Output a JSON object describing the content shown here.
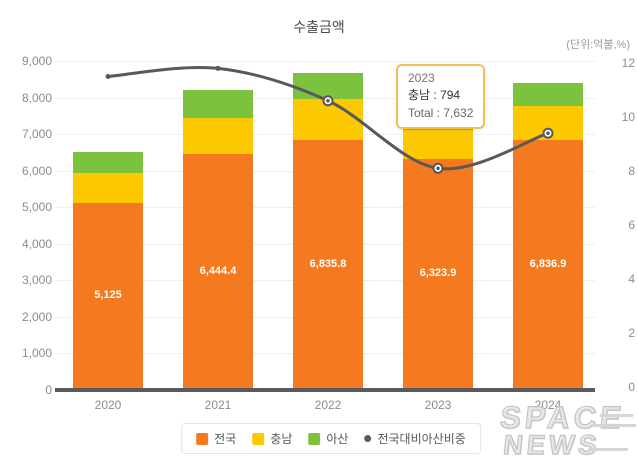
{
  "chart_data": {
    "type": "bar",
    "subtype": "stacked-bars-with-line",
    "title": "수출금액",
    "unit_note": "(단위:억불,%)",
    "categories": [
      "2020",
      "2021",
      "2022",
      "2023",
      "2024"
    ],
    "series": [
      {
        "name": "전국",
        "key": "nationwide",
        "color": "#f4791f",
        "values": [
          5125,
          6444.4,
          6835.8,
          6323.9,
          6836.9
        ],
        "labels": [
          "5,125",
          "6,444.4",
          "6,835.8",
          "6,323.9",
          "6,836.9"
        ]
      },
      {
        "name": "충남",
        "key": "chungnam",
        "color": "#fcc800",
        "values": [
          805,
          990,
          1115,
          794,
          920
        ]
      },
      {
        "name": "아산",
        "key": "asan",
        "color": "#7cc23e",
        "values": [
          590,
          760,
          725,
          514,
          645
        ]
      }
    ],
    "line_series": {
      "name": "전국대비아산비중",
      "key": "asan-share-of-nationwide",
      "color": "#595959",
      "axis": "right",
      "values": [
        11.5,
        11.8,
        10.6,
        8.1,
        9.4
      ],
      "marker_emphasis_indices": [
        2,
        3,
        4
      ]
    },
    "left_axis": {
      "min": 0,
      "max": 9000,
      "tick_values": [
        0,
        1000,
        2000,
        3000,
        4000,
        5000,
        6000,
        7000,
        8000,
        9000
      ],
      "tick_labels": [
        "0",
        "1,000",
        "2,000",
        "3,000",
        "4,000",
        "5,000",
        "6,000",
        "7,000",
        "8,000",
        "9,000"
      ]
    },
    "right_axis": {
      "min": 0,
      "max": 12,
      "tick_values": [
        0,
        2,
        4,
        6,
        8,
        10,
        12
      ],
      "tick_labels": [
        "0",
        "2",
        "4",
        "6",
        "8",
        "10",
        "12"
      ]
    },
    "grid": true,
    "legend_position": "bottom"
  },
  "tooltip": {
    "title": "2023",
    "lines": [
      "충남 : 794",
      "Total : 7,632"
    ]
  },
  "legend": {
    "items": [
      {
        "label": "전국",
        "color": "#f4791f",
        "marker": "square"
      },
      {
        "label": "충남",
        "color": "#fcc800",
        "marker": "square"
      },
      {
        "label": "아산",
        "color": "#7cc23e",
        "marker": "square"
      },
      {
        "label": "전국대비아산비중",
        "color": "#595959",
        "marker": "dot"
      }
    ]
  },
  "watermark": {
    "line1": "SPACE",
    "line2": "NEWS"
  }
}
